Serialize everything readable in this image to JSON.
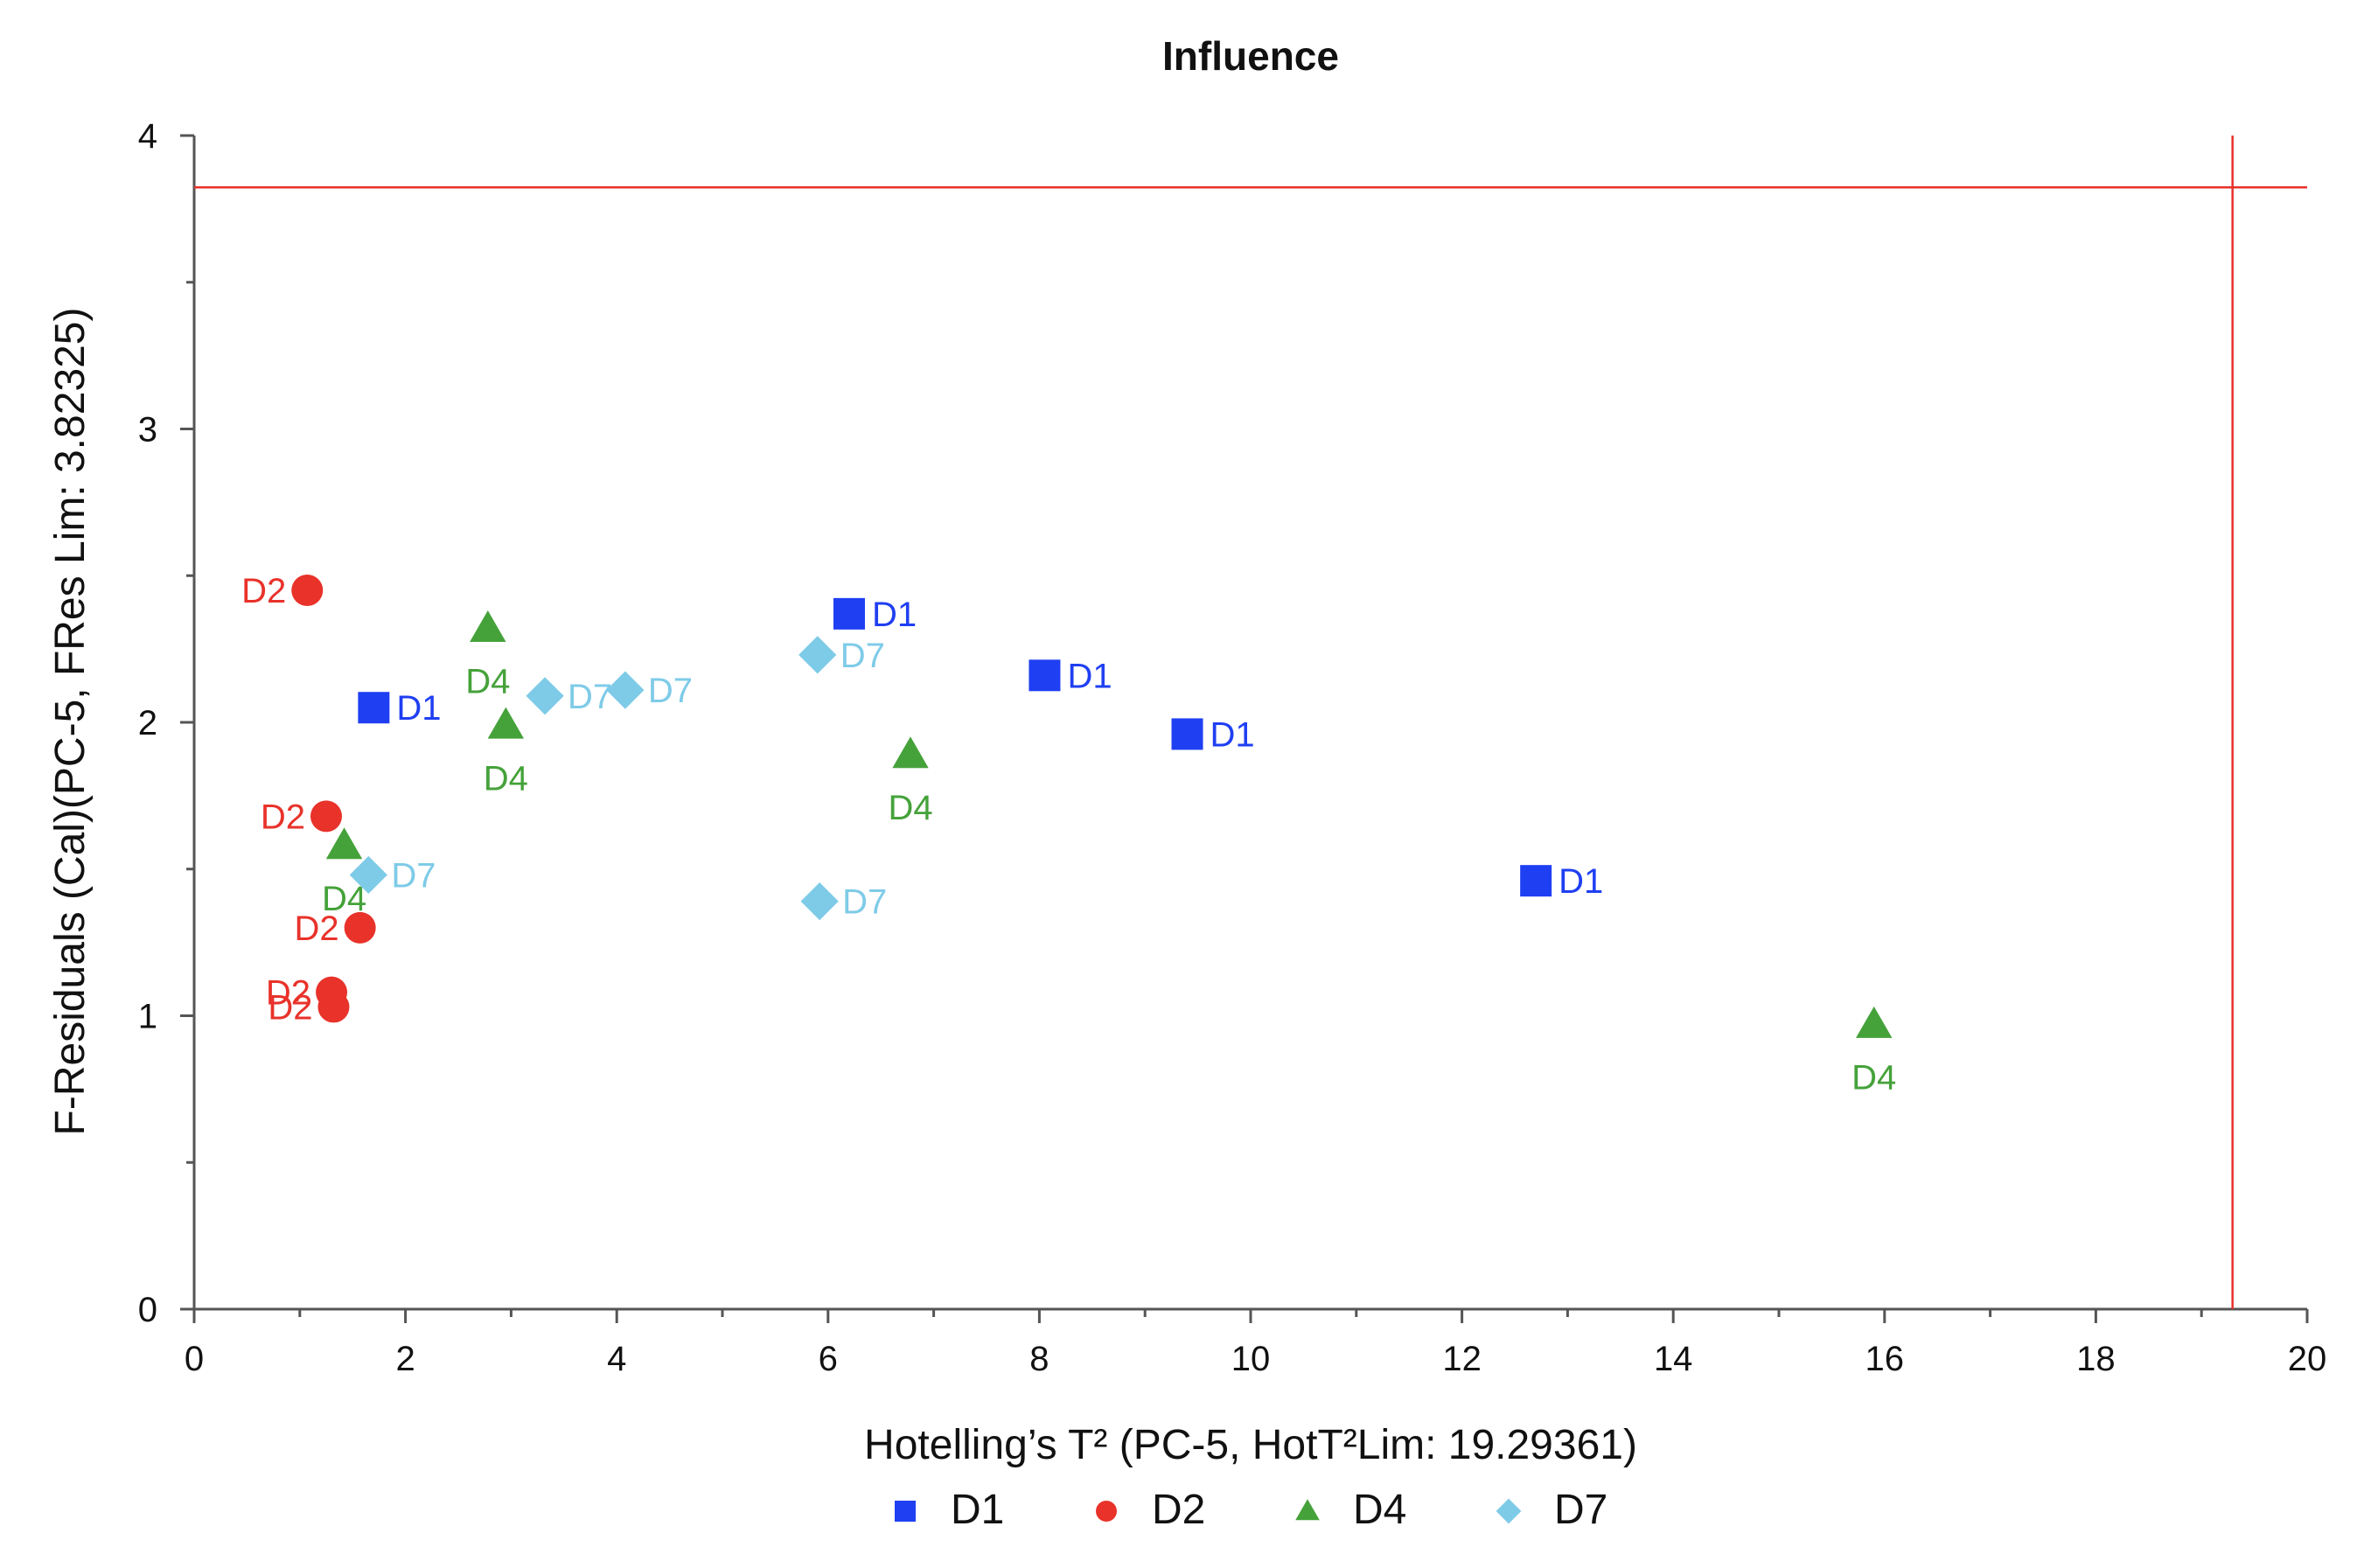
{
  "chart_data": {
    "type": "scatter",
    "title": "Influence",
    "xlabel": "Hotelling’s T² (PC-5, HotT²Lim: 19.29361)",
    "ylabel": "F-Residuals (Cal)(PC-5, FRes Lim: 3.82325)",
    "xlim": [
      0,
      20
    ],
    "ylim": [
      0,
      4
    ],
    "x_ticks": [
      "0",
      "2",
      "4",
      "6",
      "8",
      "10",
      "12",
      "14",
      "16",
      "18",
      "20"
    ],
    "y_ticks": [
      "0",
      "1",
      "2",
      "3",
      "4"
    ],
    "limits": {
      "hotelling_t2": 19.29361,
      "f_residual": 3.82325
    },
    "limit_color": "#e8322a",
    "series": [
      {
        "name": "D1",
        "marker": "square",
        "color": "#1f3ff2",
        "label_color": "#1f3ff2",
        "points": [
          {
            "x": 1.7,
            "y": 2.05,
            "label": "D1",
            "label_pos": "right"
          },
          {
            "x": 6.2,
            "y": 2.37,
            "label": "D1",
            "label_pos": "right"
          },
          {
            "x": 8.05,
            "y": 2.16,
            "label": "D1",
            "label_pos": "right"
          },
          {
            "x": 9.4,
            "y": 1.96,
            "label": "D1",
            "label_pos": "right"
          },
          {
            "x": 12.7,
            "y": 1.46,
            "label": "D1",
            "label_pos": "right"
          }
        ]
      },
      {
        "name": "D2",
        "marker": "circle",
        "color": "#e8322a",
        "label_color": "#e8322a",
        "points": [
          {
            "x": 1.07,
            "y": 2.45,
            "label": "D2",
            "label_pos": "left"
          },
          {
            "x": 1.25,
            "y": 1.68,
            "label": "D2",
            "label_pos": "left"
          },
          {
            "x": 1.57,
            "y": 1.3,
            "label": "D2",
            "label_pos": "left"
          },
          {
            "x": 1.3,
            "y": 1.08,
            "label": "D2",
            "label_pos": "left"
          },
          {
            "x": 1.32,
            "y": 1.03,
            "label": "D2",
            "label_pos": "left"
          }
        ]
      },
      {
        "name": "D4",
        "marker": "triangle",
        "color": "#45a23a",
        "label_color": "#45a23a",
        "points": [
          {
            "x": 2.78,
            "y": 2.32,
            "label": "D4",
            "label_pos": "below"
          },
          {
            "x": 2.95,
            "y": 1.99,
            "label": "D4",
            "label_pos": "below"
          },
          {
            "x": 1.42,
            "y": 1.58,
            "label": "D4",
            "label_pos": "below"
          },
          {
            "x": 6.78,
            "y": 1.89,
            "label": "D4",
            "label_pos": "below"
          },
          {
            "x": 15.9,
            "y": 0.97,
            "label": "D4",
            "label_pos": "below"
          }
        ]
      },
      {
        "name": "D7",
        "marker": "diamond",
        "color": "#7ecbe8",
        "label_color": "#7ecbe8",
        "points": [
          {
            "x": 3.32,
            "y": 2.09,
            "label": "D7",
            "label_pos": "right"
          },
          {
            "x": 4.08,
            "y": 2.11,
            "label": "D7",
            "label_pos": "right"
          },
          {
            "x": 5.9,
            "y": 2.23,
            "label": "D7",
            "label_pos": "right"
          },
          {
            "x": 1.65,
            "y": 1.48,
            "label": "D7",
            "label_pos": "right"
          },
          {
            "x": 5.92,
            "y": 1.39,
            "label": "D7",
            "label_pos": "right"
          }
        ]
      }
    ],
    "legend": [
      "D1",
      "D2",
      "D4",
      "D7"
    ],
    "legend_position": "bottom-center"
  }
}
